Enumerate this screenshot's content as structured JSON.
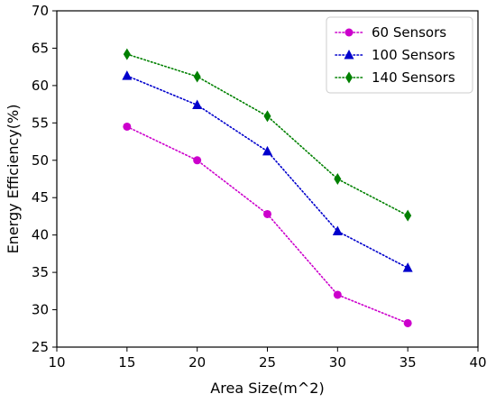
{
  "chart_data": {
    "type": "line",
    "xlabel": "Area Size(m^2)",
    "ylabel": "Energy Efficiency(%)",
    "xlim": [
      10,
      40
    ],
    "ylim": [
      25,
      70
    ],
    "xticks": [
      "10",
      "15",
      "20",
      "25",
      "30",
      "35",
      "40"
    ],
    "yticks": [
      "25",
      "30",
      "35",
      "40",
      "45",
      "50",
      "55",
      "60",
      "65",
      "70"
    ],
    "x": [
      15,
      20,
      25,
      30,
      35
    ],
    "grid": false,
    "legend_position": "top-right",
    "series": [
      {
        "name": "60 Sensors",
        "marker": "circle",
        "color": "#cc00cc",
        "values": [
          54.5,
          50.0,
          42.8,
          32.0,
          28.2
        ]
      },
      {
        "name": "100 Sensors",
        "marker": "triangle",
        "color": "#0000cc",
        "values": [
          61.3,
          57.4,
          51.2,
          40.5,
          35.6
        ]
      },
      {
        "name": "140 Sensors",
        "marker": "diamond",
        "color": "#008000",
        "values": [
          64.2,
          61.2,
          55.9,
          47.5,
          42.6
        ]
      }
    ]
  }
}
